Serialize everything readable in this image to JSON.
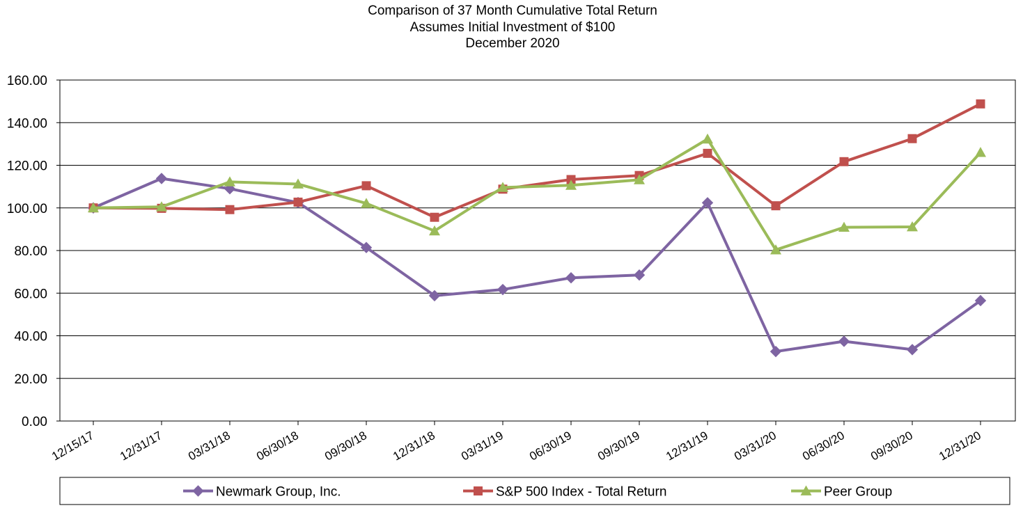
{
  "chart_data": {
    "type": "line",
    "title": [
      "Comparison of 37 Month Cumulative Total Return",
      "Assumes Initial Investment of $100",
      "December 2020"
    ],
    "categories": [
      "12/15/17",
      "12/31/17",
      "03/31/18",
      "06/30/18",
      "09/30/18",
      "12/31/18",
      "03/31/19",
      "06/30/19",
      "09/30/19",
      "12/31/19",
      "03/31/20",
      "06/30/20",
      "09/30/20",
      "12/31/20"
    ],
    "y_ticks": [
      "0.00",
      "20.00",
      "40.00",
      "60.00",
      "80.00",
      "100.00",
      "120.00",
      "140.00",
      "160.00"
    ],
    "ylim": [
      0,
      160
    ],
    "grid": true,
    "legend_position": "bottom",
    "series": [
      {
        "name": "Newmark Group, Inc.",
        "color": "#7E64A2",
        "marker": "diamond",
        "values": [
          100.0,
          113.8,
          109.0,
          102.5,
          81.4,
          58.8,
          61.7,
          67.2,
          68.5,
          102.4,
          32.6,
          37.4,
          33.5,
          56.5
        ]
      },
      {
        "name": "S&P 500 Index - Total Return",
        "color": "#C0504D",
        "marker": "square",
        "values": [
          100.0,
          99.8,
          99.2,
          102.7,
          110.4,
          95.6,
          108.8,
          113.3,
          115.2,
          125.6,
          101.0,
          121.7,
          132.5,
          148.8
        ]
      },
      {
        "name": "Peer Group",
        "color": "#9BBB59",
        "marker": "triangle",
        "values": [
          100.0,
          100.5,
          112.2,
          111.2,
          102.1,
          89.2,
          109.6,
          110.6,
          113.2,
          132.3,
          80.3,
          90.9,
          91.1,
          126.0
        ]
      }
    ]
  }
}
